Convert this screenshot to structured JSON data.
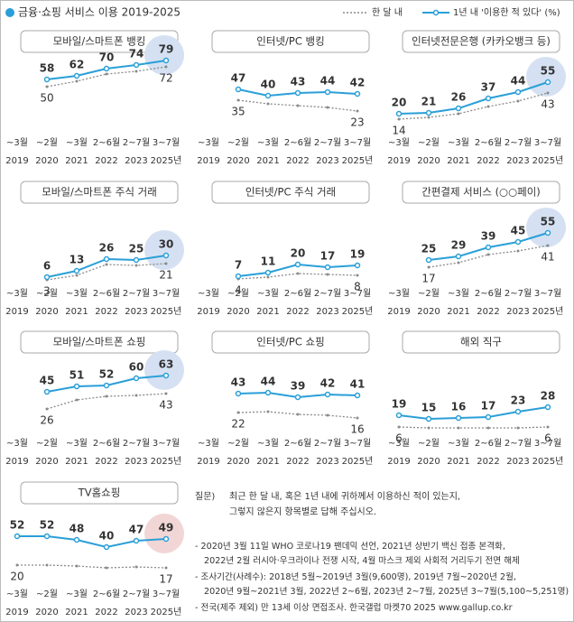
{
  "title": "금융·쇼핑 서비스 이용 2019-2025",
  "chart_data": [
    {
      "type": "line",
      "title": "모바일/스마트폰 뱅킹",
      "highlight_color": "#d5e1f2",
      "ylim": [
        0,
        100
      ],
      "categories": [
        [
          "~3월",
          "2019"
        ],
        [
          "~2월",
          "2020"
        ],
        [
          "~3월",
          "2021"
        ],
        [
          "2~6월",
          "2022"
        ],
        [
          "2~7월",
          "2023"
        ],
        [
          "3~7월",
          "2025년"
        ]
      ],
      "series": [
        {
          "name": "한 달 내",
          "color": "#8a8a8a",
          "values": [
            null,
            50,
            56,
            64,
            67,
            72
          ]
        },
        {
          "name": "1년 내 '이용한 적 있다' (%)",
          "color": "#2a9fd8",
          "values": [
            null,
            58,
            62,
            70,
            74,
            79
          ]
        }
      ]
    },
    {
      "type": "line",
      "title": "인터넷/PC 뱅킹",
      "highlight_color": null,
      "ylim": [
        0,
        100
      ],
      "categories": [
        [
          "~3월",
          "2019"
        ],
        [
          "~2월",
          "2020"
        ],
        [
          "~3월",
          "2021"
        ],
        [
          "2~6월",
          "2022"
        ],
        [
          "2~7월",
          "2023"
        ],
        [
          "3~7월",
          "2025년"
        ]
      ],
      "series": [
        {
          "name": "한 달 내",
          "color": "#8a8a8a",
          "values": [
            null,
            35,
            31,
            29,
            27,
            23
          ]
        },
        {
          "name": "1년 내 '이용한 적 있다' (%)",
          "color": "#2a9fd8",
          "values": [
            null,
            47,
            40,
            43,
            44,
            42
          ]
        }
      ]
    },
    {
      "type": "line",
      "title": "인터넷전문은행 (카카오뱅크 등)",
      "highlight_color": "#d5e1f2",
      "ylim": [
        0,
        100
      ],
      "categories": [
        [
          "~3월",
          "2019"
        ],
        [
          "~2월",
          "2020"
        ],
        [
          "~3월",
          "2021"
        ],
        [
          "2~6월",
          "2022"
        ],
        [
          "2~7월",
          "2023"
        ],
        [
          "3~7월",
          "2025년"
        ]
      ],
      "series": [
        {
          "name": "한 달 내",
          "color": "#8a8a8a",
          "values": [
            14,
            16,
            20,
            28,
            34,
            43
          ]
        },
        {
          "name": "1년 내 '이용한 적 있다' (%)",
          "color": "#2a9fd8",
          "values": [
            20,
            21,
            26,
            37,
            44,
            55
          ]
        }
      ]
    },
    {
      "type": "line",
      "title": "모바일/스마트폰 주식 거래",
      "highlight_color": "#d5e1f2",
      "ylim": [
        0,
        100
      ],
      "categories": [
        [
          "~3월",
          "2019"
        ],
        [
          "~2월",
          "2020"
        ],
        [
          "~3월",
          "2021"
        ],
        [
          "2~6월",
          "2022"
        ],
        [
          "2~7월",
          "2023"
        ],
        [
          "3~7월",
          "2025년"
        ]
      ],
      "series": [
        {
          "name": "한 달 내",
          "color": "#8a8a8a",
          "values": [
            null,
            3,
            8,
            20,
            19,
            21
          ]
        },
        {
          "name": "1년 내 '이용한 적 있다' (%)",
          "color": "#2a9fd8",
          "values": [
            null,
            6,
            13,
            26,
            25,
            30
          ]
        }
      ]
    },
    {
      "type": "line",
      "title": "인터넷/PC 주식 거래",
      "highlight_color": null,
      "ylim": [
        0,
        100
      ],
      "categories": [
        [
          "~3월",
          "2019"
        ],
        [
          "~2월",
          "2020"
        ],
        [
          "~3월",
          "2021"
        ],
        [
          "2~6월",
          "2022"
        ],
        [
          "2~7월",
          "2023"
        ],
        [
          "3~7월",
          "2025년"
        ]
      ],
      "series": [
        {
          "name": "한 달 내",
          "color": "#8a8a8a",
          "values": [
            null,
            4,
            6,
            10,
            9,
            8
          ]
        },
        {
          "name": "1년 내 '이용한 적 있다' (%)",
          "color": "#2a9fd8",
          "values": [
            null,
            7,
            11,
            20,
            17,
            19
          ]
        }
      ]
    },
    {
      "type": "line",
      "title": "간편결제 서비스 (○○페이)",
      "highlight_color": "#d5e1f2",
      "ylim": [
        0,
        100
      ],
      "categories": [
        [
          "~3월",
          "2019"
        ],
        [
          "~2월",
          "2020"
        ],
        [
          "~3월",
          "2021"
        ],
        [
          "2~6월",
          "2022"
        ],
        [
          "2~7월",
          "2023"
        ],
        [
          "3~7월",
          "2025년"
        ]
      ],
      "series": [
        {
          "name": "한 달 내",
          "color": "#8a8a8a",
          "values": [
            null,
            17,
            22,
            31,
            35,
            41
          ]
        },
        {
          "name": "1년 내 '이용한 적 있다' (%)",
          "color": "#2a9fd8",
          "values": [
            null,
            25,
            29,
            39,
            45,
            55
          ]
        }
      ]
    },
    {
      "type": "line",
      "title": "모바일/스마트폰 쇼핑",
      "highlight_color": "#d5e1f2",
      "ylim": [
        0,
        100
      ],
      "categories": [
        [
          "~3월",
          "2019"
        ],
        [
          "~2월",
          "2020"
        ],
        [
          "~3월",
          "2021"
        ],
        [
          "2~6월",
          "2022"
        ],
        [
          "2~7월",
          "2023"
        ],
        [
          "3~7월",
          "2025년"
        ]
      ],
      "series": [
        {
          "name": "한 달 내",
          "color": "#8a8a8a",
          "values": [
            null,
            26,
            36,
            40,
            41,
            43
          ]
        },
        {
          "name": "1년 내 '이용한 적 있다' (%)",
          "color": "#2a9fd8",
          "values": [
            null,
            45,
            51,
            52,
            60,
            63
          ]
        }
      ]
    },
    {
      "type": "line",
      "title": "인터넷/PC 쇼핑",
      "highlight_color": null,
      "ylim": [
        0,
        100
      ],
      "categories": [
        [
          "~3월",
          "2019"
        ],
        [
          "~2월",
          "2020"
        ],
        [
          "~3월",
          "2021"
        ],
        [
          "2~6월",
          "2022"
        ],
        [
          "2~7월",
          "2023"
        ],
        [
          "3~7월",
          "2025년"
        ]
      ],
      "series": [
        {
          "name": "한 달 내",
          "color": "#8a8a8a",
          "values": [
            null,
            22,
            23,
            20,
            19,
            16
          ]
        },
        {
          "name": "1년 내 '이용한 적 있다' (%)",
          "color": "#2a9fd8",
          "values": [
            null,
            43,
            44,
            39,
            42,
            41
          ]
        }
      ]
    },
    {
      "type": "line",
      "title": "해외 직구",
      "highlight_color": null,
      "ylim": [
        0,
        100
      ],
      "categories": [
        [
          "~3월",
          "2019"
        ],
        [
          "~2월",
          "2020"
        ],
        [
          "~3월",
          "2021"
        ],
        [
          "2~6월",
          "2022"
        ],
        [
          "2~7월",
          "2023"
        ],
        [
          "3~7월",
          "2025년"
        ]
      ],
      "series": [
        {
          "name": "한 달 내",
          "color": "#8a8a8a",
          "values": [
            6,
            5,
            5,
            5,
            5,
            6
          ]
        },
        {
          "name": "1년 내 '이용한 적 있다' (%)",
          "color": "#2a9fd8",
          "values": [
            19,
            15,
            16,
            17,
            23,
            28
          ]
        }
      ]
    },
    {
      "type": "line",
      "title": "TV홈쇼핑",
      "highlight_color": "#f2d6d6",
      "ylim": [
        0,
        100
      ],
      "categories": [
        [
          "~3월",
          "2019"
        ],
        [
          "~2월",
          "2020"
        ],
        [
          "~3월",
          "2021"
        ],
        [
          "2~6월",
          "2022"
        ],
        [
          "2~7월",
          "2023"
        ],
        [
          "3~7월",
          "2025년"
        ]
      ],
      "series": [
        {
          "name": "한 달 내",
          "color": "#8a8a8a",
          "values": [
            20,
            20,
            19,
            17,
            18,
            17
          ]
        },
        {
          "name": "1년 내 '이용한 적 있다' (%)",
          "color": "#2a9fd8",
          "values": [
            52,
            52,
            48,
            40,
            47,
            49
          ]
        }
      ]
    }
  ],
  "notes": {
    "question_label": "질문)",
    "question": [
      "최근 한 달 내, 혹은 1년 내에 귀하께서 이용하신 적이 있는지,",
      "그렇지 않은지 항목별로 답해 주십시오."
    ],
    "lines": [
      "- 2020년 3월 11일 WHO 코로나19 팬데믹 선언, 2021년 상반기 백신 접종 본격화,",
      "2022년 2월 러시아·우크라이나 전쟁 시작, 4월 마스크 제외 사회적 거리두기 전면 해제",
      "- 조사기간(사례수): 2018년 5월~2019년 3월(9,600명), 2019년 7월~2020년 2월,",
      "2020년 9월~2021년 3월, 2022년 2~6월, 2023년 2~7월, 2025년 3~7월(5,100~5,251명)",
      "- 전국(제주 제외) 만 13세 이상 면접조사. 한국갤럽 마켓70 2025 www.gallup.co.kr"
    ]
  }
}
